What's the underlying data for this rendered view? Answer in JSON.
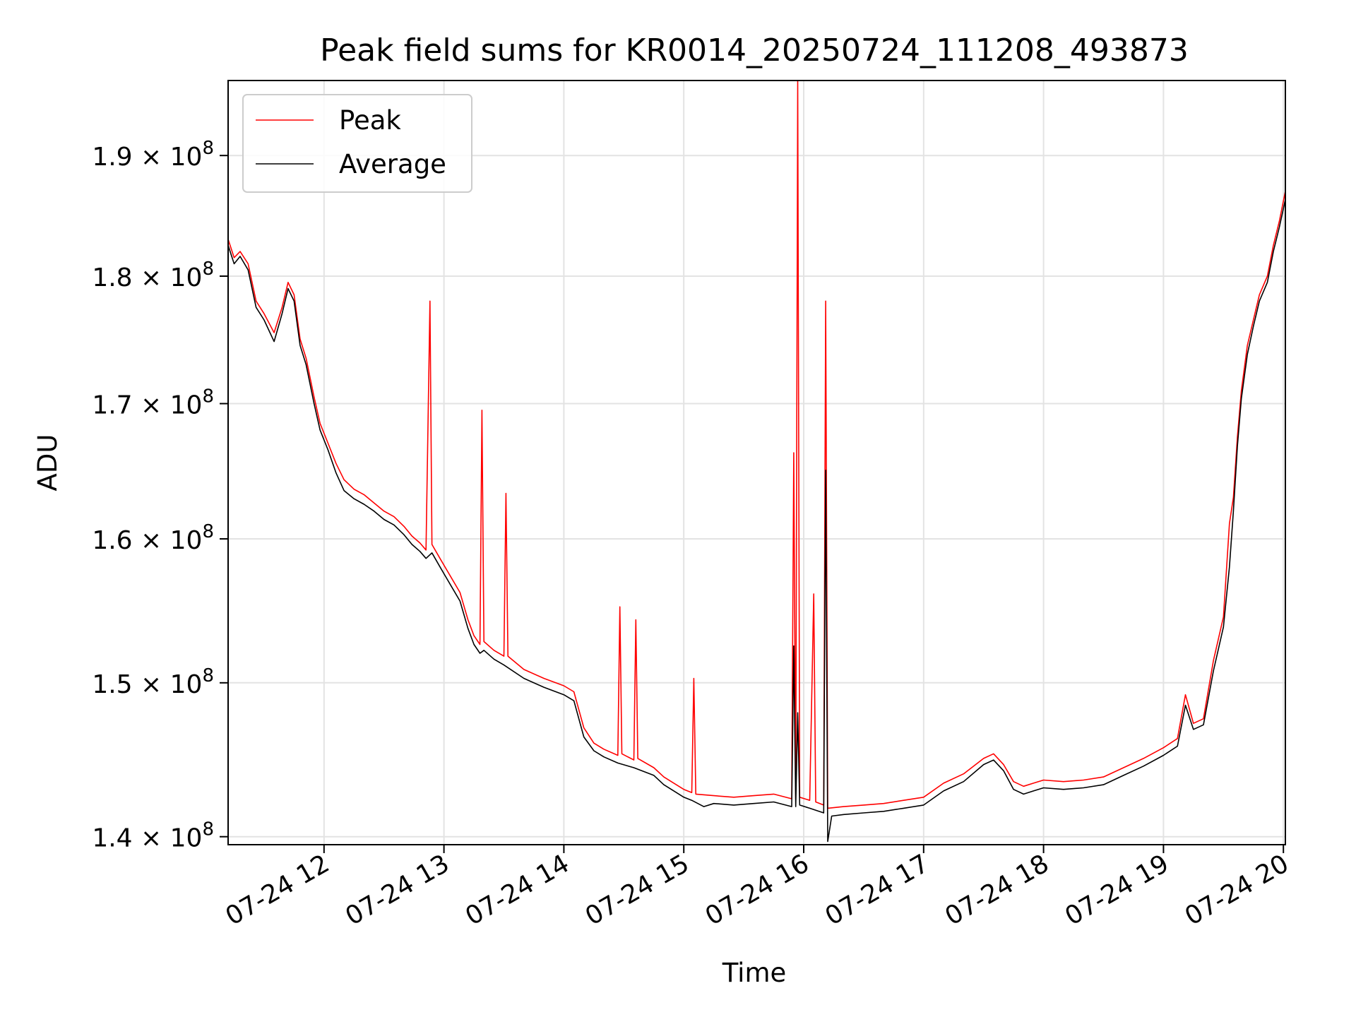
{
  "chart_data": {
    "type": "line",
    "title": "Peak field sums for KR0014_20250724_111208_493873",
    "xlabel": "Time",
    "ylabel": "ADU",
    "x_is_time": true,
    "xlim": [
      "2025-07-24T11:12",
      "2025-07-24T20:01"
    ],
    "ylim": [
      139500000,
      196500000
    ],
    "yscale": "log",
    "grid": true,
    "legend_position": "top-left",
    "x_ticks": [
      {
        "value": "2025-07-24T12:00",
        "label": "07-24 12"
      },
      {
        "value": "2025-07-24T13:00",
        "label": "07-24 13"
      },
      {
        "value": "2025-07-24T14:00",
        "label": "07-24 14"
      },
      {
        "value": "2025-07-24T15:00",
        "label": "07-24 15"
      },
      {
        "value": "2025-07-24T16:00",
        "label": "07-24 16"
      },
      {
        "value": "2025-07-24T17:00",
        "label": "07-24 17"
      },
      {
        "value": "2025-07-24T18:00",
        "label": "07-24 18"
      },
      {
        "value": "2025-07-24T19:00",
        "label": "07-24 19"
      },
      {
        "value": "2025-07-24T20:00",
        "label": "07-24 20"
      }
    ],
    "y_ticks": [
      {
        "value": 140000000,
        "mantissa": "1.4",
        "exponent": "8"
      },
      {
        "value": 150000000,
        "mantissa": "1.5",
        "exponent": "8"
      },
      {
        "value": 160000000,
        "mantissa": "1.6",
        "exponent": "8"
      },
      {
        "value": 170000000,
        "mantissa": "1.7",
        "exponent": "8"
      },
      {
        "value": 180000000,
        "mantissa": "1.8",
        "exponent": "8"
      },
      {
        "value": 190000000,
        "mantissa": "1.9",
        "exponent": "8"
      }
    ],
    "series": [
      {
        "name": "Peak",
        "color": "#ff0000",
        "points": [
          [
            "2025-07-24T11:12",
            183000000
          ],
          [
            "2025-07-24T11:15",
            181500000
          ],
          [
            "2025-07-24T11:18",
            182000000
          ],
          [
            "2025-07-24T11:22",
            181000000
          ],
          [
            "2025-07-24T11:26",
            178000000
          ],
          [
            "2025-07-24T11:30",
            177000000
          ],
          [
            "2025-07-24T11:35",
            175500000
          ],
          [
            "2025-07-24T11:39",
            177500000
          ],
          [
            "2025-07-24T11:42",
            179500000
          ],
          [
            "2025-07-24T11:45",
            178500000
          ],
          [
            "2025-07-24T11:48",
            175000000
          ],
          [
            "2025-07-24T11:51",
            173500000
          ],
          [
            "2025-07-24T11:55",
            170500000
          ],
          [
            "2025-07-24T11:58",
            168500000
          ],
          [
            "2025-07-24T12:02",
            167000000
          ],
          [
            "2025-07-24T12:06",
            165500000
          ],
          [
            "2025-07-24T12:10",
            164300000
          ],
          [
            "2025-07-24T12:15",
            163600000
          ],
          [
            "2025-07-24T12:20",
            163200000
          ],
          [
            "2025-07-24T12:25",
            162600000
          ],
          [
            "2025-07-24T12:30",
            162000000
          ],
          [
            "2025-07-24T12:35",
            161600000
          ],
          [
            "2025-07-24T12:40",
            160900000
          ],
          [
            "2025-07-24T12:44",
            160200000
          ],
          [
            "2025-07-24T12:48",
            159700000
          ],
          [
            "2025-07-24T12:51",
            159200000
          ],
          [
            "2025-07-24T12:53",
            178000000
          ],
          [
            "2025-07-24T12:54",
            159600000
          ],
          [
            "2025-07-24T12:58",
            158600000
          ],
          [
            "2025-07-24T13:03",
            157400000
          ],
          [
            "2025-07-24T13:08",
            156200000
          ],
          [
            "2025-07-24T13:12",
            154300000
          ],
          [
            "2025-07-24T13:15",
            153200000
          ],
          [
            "2025-07-24T13:18",
            152600000
          ],
          [
            "2025-07-24T13:19",
            169500000
          ],
          [
            "2025-07-24T13:20",
            152800000
          ],
          [
            "2025-07-24T13:25",
            152200000
          ],
          [
            "2025-07-24T13:30",
            151800000
          ],
          [
            "2025-07-24T13:31",
            163300000
          ],
          [
            "2025-07-24T13:32",
            151800000
          ],
          [
            "2025-07-24T13:40",
            150900000
          ],
          [
            "2025-07-24T13:50",
            150300000
          ],
          [
            "2025-07-24T14:00",
            149800000
          ],
          [
            "2025-07-24T14:05",
            149400000
          ],
          [
            "2025-07-24T14:10",
            147000000
          ],
          [
            "2025-07-24T14:15",
            146000000
          ],
          [
            "2025-07-24T14:20",
            145600000
          ],
          [
            "2025-07-24T14:27",
            145200000
          ],
          [
            "2025-07-24T14:28",
            155200000
          ],
          [
            "2025-07-24T14:29",
            145300000
          ],
          [
            "2025-07-24T14:35",
            144900000
          ],
          [
            "2025-07-24T14:36",
            154300000
          ],
          [
            "2025-07-24T14:37",
            145000000
          ],
          [
            "2025-07-24T14:45",
            144400000
          ],
          [
            "2025-07-24T14:50",
            143800000
          ],
          [
            "2025-07-24T14:55",
            143400000
          ],
          [
            "2025-07-24T15:00",
            143000000
          ],
          [
            "2025-07-24T15:04",
            142800000
          ],
          [
            "2025-07-24T15:05",
            150300000
          ],
          [
            "2025-07-24T15:06",
            142700000
          ],
          [
            "2025-07-24T15:15",
            142600000
          ],
          [
            "2025-07-24T15:25",
            142500000
          ],
          [
            "2025-07-24T15:35",
            142600000
          ],
          [
            "2025-07-24T15:45",
            142700000
          ],
          [
            "2025-07-24T15:54",
            142400000
          ],
          [
            "2025-07-24T15:55",
            166300000
          ],
          [
            "2025-07-24T15:56",
            142400000
          ],
          [
            "2025-07-24T15:57",
            196500000
          ],
          [
            "2025-07-24T15:58",
            142500000
          ],
          [
            "2025-07-24T16:03",
            142300000
          ],
          [
            "2025-07-24T16:05",
            156100000
          ],
          [
            "2025-07-24T16:06",
            142200000
          ],
          [
            "2025-07-24T16:10",
            142000000
          ],
          [
            "2025-07-24T16:11",
            178000000
          ],
          [
            "2025-07-24T16:12",
            141800000
          ],
          [
            "2025-07-24T16:20",
            141900000
          ],
          [
            "2025-07-24T16:30",
            142000000
          ],
          [
            "2025-07-24T16:40",
            142100000
          ],
          [
            "2025-07-24T16:50",
            142300000
          ],
          [
            "2025-07-24T17:00",
            142500000
          ],
          [
            "2025-07-24T17:10",
            143400000
          ],
          [
            "2025-07-24T17:20",
            144000000
          ],
          [
            "2025-07-24T17:30",
            145000000
          ],
          [
            "2025-07-24T17:35",
            145300000
          ],
          [
            "2025-07-24T17:40",
            144600000
          ],
          [
            "2025-07-24T17:45",
            143500000
          ],
          [
            "2025-07-24T17:50",
            143200000
          ],
          [
            "2025-07-24T17:55",
            143400000
          ],
          [
            "2025-07-24T18:00",
            143600000
          ],
          [
            "2025-07-24T18:10",
            143500000
          ],
          [
            "2025-07-24T18:20",
            143600000
          ],
          [
            "2025-07-24T18:30",
            143800000
          ],
          [
            "2025-07-24T18:40",
            144400000
          ],
          [
            "2025-07-24T18:50",
            145000000
          ],
          [
            "2025-07-24T19:00",
            145700000
          ],
          [
            "2025-07-24T19:07",
            146300000
          ],
          [
            "2025-07-24T19:11",
            149200000
          ],
          [
            "2025-07-24T19:15",
            147300000
          ],
          [
            "2025-07-24T19:20",
            147600000
          ],
          [
            "2025-07-24T19:25",
            151500000
          ],
          [
            "2025-07-24T19:30",
            154500000
          ],
          [
            "2025-07-24T19:33",
            161100000
          ],
          [
            "2025-07-24T19:35",
            163000000
          ],
          [
            "2025-07-24T19:37",
            167500000
          ],
          [
            "2025-07-24T19:39",
            171000000
          ],
          [
            "2025-07-24T19:42",
            174500000
          ],
          [
            "2025-07-24T19:45",
            176500000
          ],
          [
            "2025-07-24T19:48",
            178500000
          ],
          [
            "2025-07-24T19:52",
            180000000
          ],
          [
            "2025-07-24T19:55",
            182500000
          ],
          [
            "2025-07-24T19:58",
            184500000
          ],
          [
            "2025-07-24T20:01",
            187000000
          ]
        ]
      },
      {
        "name": "Average",
        "color": "#000000",
        "points": [
          [
            "2025-07-24T11:12",
            182500000
          ],
          [
            "2025-07-24T11:15",
            181000000
          ],
          [
            "2025-07-24T11:18",
            181600000
          ],
          [
            "2025-07-24T11:22",
            180500000
          ],
          [
            "2025-07-24T11:26",
            177500000
          ],
          [
            "2025-07-24T11:30",
            176500000
          ],
          [
            "2025-07-24T11:35",
            174800000
          ],
          [
            "2025-07-24T11:39",
            177000000
          ],
          [
            "2025-07-24T11:42",
            179000000
          ],
          [
            "2025-07-24T11:45",
            178000000
          ],
          [
            "2025-07-24T11:48",
            174500000
          ],
          [
            "2025-07-24T11:51",
            173000000
          ],
          [
            "2025-07-24T11:55",
            170000000
          ],
          [
            "2025-07-24T11:58",
            168000000
          ],
          [
            "2025-07-24T12:02",
            166500000
          ],
          [
            "2025-07-24T12:06",
            164800000
          ],
          [
            "2025-07-24T12:10",
            163500000
          ],
          [
            "2025-07-24T12:15",
            162900000
          ],
          [
            "2025-07-24T12:20",
            162500000
          ],
          [
            "2025-07-24T12:25",
            162000000
          ],
          [
            "2025-07-24T12:30",
            161400000
          ],
          [
            "2025-07-24T12:35",
            161000000
          ],
          [
            "2025-07-24T12:40",
            160300000
          ],
          [
            "2025-07-24T12:44",
            159600000
          ],
          [
            "2025-07-24T12:48",
            159100000
          ],
          [
            "2025-07-24T12:51",
            158600000
          ],
          [
            "2025-07-24T12:54",
            159000000
          ],
          [
            "2025-07-24T12:58",
            158000000
          ],
          [
            "2025-07-24T13:03",
            156800000
          ],
          [
            "2025-07-24T13:08",
            155600000
          ],
          [
            "2025-07-24T13:12",
            153700000
          ],
          [
            "2025-07-24T13:15",
            152600000
          ],
          [
            "2025-07-24T13:18",
            152000000
          ],
          [
            "2025-07-24T13:20",
            152200000
          ],
          [
            "2025-07-24T13:25",
            151600000
          ],
          [
            "2025-07-24T13:30",
            151200000
          ],
          [
            "2025-07-24T13:40",
            150300000
          ],
          [
            "2025-07-24T13:50",
            149700000
          ],
          [
            "2025-07-24T14:00",
            149200000
          ],
          [
            "2025-07-24T14:05",
            148800000
          ],
          [
            "2025-07-24T14:10",
            146400000
          ],
          [
            "2025-07-24T14:15",
            145500000
          ],
          [
            "2025-07-24T14:20",
            145100000
          ],
          [
            "2025-07-24T14:27",
            144700000
          ],
          [
            "2025-07-24T14:35",
            144400000
          ],
          [
            "2025-07-24T14:45",
            143900000
          ],
          [
            "2025-07-24T14:50",
            143300000
          ],
          [
            "2025-07-24T14:55",
            142900000
          ],
          [
            "2025-07-24T15:00",
            142500000
          ],
          [
            "2025-07-24T15:04",
            142300000
          ],
          [
            "2025-07-24T15:10",
            141900000
          ],
          [
            "2025-07-24T15:15",
            142100000
          ],
          [
            "2025-07-24T15:25",
            142000000
          ],
          [
            "2025-07-24T15:35",
            142100000
          ],
          [
            "2025-07-24T15:45",
            142200000
          ],
          [
            "2025-07-24T15:54",
            141900000
          ],
          [
            "2025-07-24T15:55",
            152500000
          ],
          [
            "2025-07-24T15:56",
            141900000
          ],
          [
            "2025-07-24T15:57",
            148000000
          ],
          [
            "2025-07-24T15:58",
            142000000
          ],
          [
            "2025-07-24T16:03",
            141800000
          ],
          [
            "2025-07-24T16:10",
            141500000
          ],
          [
            "2025-07-24T16:11",
            165000000
          ],
          [
            "2025-07-24T16:12",
            139700000
          ],
          [
            "2025-07-24T16:14",
            141300000
          ],
          [
            "2025-07-24T16:20",
            141400000
          ],
          [
            "2025-07-24T16:30",
            141500000
          ],
          [
            "2025-07-24T16:40",
            141600000
          ],
          [
            "2025-07-24T16:50",
            141800000
          ],
          [
            "2025-07-24T17:00",
            142000000
          ],
          [
            "2025-07-24T17:10",
            142900000
          ],
          [
            "2025-07-24T17:20",
            143500000
          ],
          [
            "2025-07-24T17:30",
            144600000
          ],
          [
            "2025-07-24T17:35",
            144900000
          ],
          [
            "2025-07-24T17:40",
            144200000
          ],
          [
            "2025-07-24T17:45",
            143000000
          ],
          [
            "2025-07-24T17:50",
            142700000
          ],
          [
            "2025-07-24T17:55",
            142900000
          ],
          [
            "2025-07-24T18:00",
            143100000
          ],
          [
            "2025-07-24T18:10",
            143000000
          ],
          [
            "2025-07-24T18:20",
            143100000
          ],
          [
            "2025-07-24T18:30",
            143300000
          ],
          [
            "2025-07-24T18:40",
            143900000
          ],
          [
            "2025-07-24T18:50",
            144500000
          ],
          [
            "2025-07-24T19:00",
            145200000
          ],
          [
            "2025-07-24T19:07",
            145800000
          ],
          [
            "2025-07-24T19:11",
            148500000
          ],
          [
            "2025-07-24T19:15",
            146900000
          ],
          [
            "2025-07-24T19:20",
            147200000
          ],
          [
            "2025-07-24T19:25",
            150800000
          ],
          [
            "2025-07-24T19:30",
            153800000
          ],
          [
            "2025-07-24T19:33",
            158000000
          ],
          [
            "2025-07-24T19:35",
            162000000
          ],
          [
            "2025-07-24T19:37",
            166800000
          ],
          [
            "2025-07-24T19:39",
            170400000
          ],
          [
            "2025-07-24T19:42",
            173800000
          ],
          [
            "2025-07-24T19:45",
            176000000
          ],
          [
            "2025-07-24T19:48",
            178000000
          ],
          [
            "2025-07-24T19:52",
            179500000
          ],
          [
            "2025-07-24T19:55",
            182000000
          ],
          [
            "2025-07-24T19:58",
            184000000
          ],
          [
            "2025-07-24T20:01",
            186300000
          ]
        ]
      }
    ]
  }
}
